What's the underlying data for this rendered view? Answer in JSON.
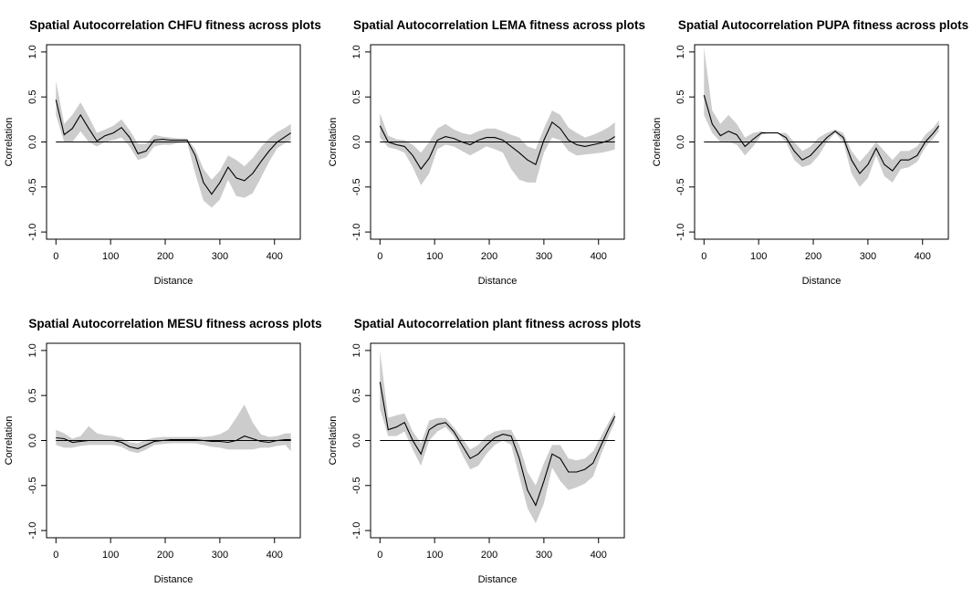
{
  "figure": {
    "background": "#ffffff",
    "band_color": "#cccccc",
    "line_color": "#000000"
  },
  "chart_data": [
    {
      "type": "line",
      "title": "Spatial Autocorrelation CHFU fitness across plots",
      "xlabel": "Distance",
      "ylabel": "Correlation",
      "xlim": [
        0,
        430
      ],
      "ylim": [
        -1,
        1
      ],
      "xticks": [
        0,
        100,
        200,
        300,
        400
      ],
      "yticks": [
        -1,
        -0.5,
        0,
        0.5,
        1
      ],
      "xtick_labels": [
        "0",
        "100",
        "200",
        "300",
        "400"
      ],
      "ytick_labels": [
        "-1.0",
        "-0.5",
        "0.0",
        "0.5",
        "1.0"
      ],
      "reference_line": 0,
      "x": [
        0,
        15,
        30,
        45,
        60,
        75,
        90,
        105,
        120,
        135,
        150,
        165,
        180,
        195,
        210,
        225,
        240,
        255,
        270,
        285,
        300,
        315,
        330,
        345,
        360,
        375,
        390,
        405,
        420,
        430
      ],
      "y": [
        0.47,
        0.08,
        0.15,
        0.3,
        0.15,
        0.01,
        0.07,
        0.1,
        0.16,
        0.05,
        -0.13,
        -0.1,
        0.02,
        0.03,
        0.02,
        0.02,
        0.02,
        -0.15,
        -0.45,
        -0.58,
        -0.45,
        -0.28,
        -0.4,
        -0.43,
        -0.35,
        -0.22,
        -0.1,
        0.0,
        0.06,
        0.1
      ],
      "lower": [
        0.3,
        0.0,
        0.0,
        0.12,
        0.0,
        -0.05,
        0.0,
        0.02,
        0.05,
        -0.05,
        -0.2,
        -0.17,
        -0.05,
        -0.03,
        -0.03,
        -0.01,
        0.0,
        -0.35,
        -0.65,
        -0.73,
        -0.64,
        -0.42,
        -0.6,
        -0.62,
        -0.57,
        -0.4,
        -0.22,
        -0.07,
        -0.01,
        0.02
      ],
      "upper": [
        0.68,
        0.2,
        0.3,
        0.44,
        0.28,
        0.1,
        0.14,
        0.18,
        0.25,
        0.13,
        -0.02,
        -0.02,
        0.08,
        0.06,
        0.05,
        0.04,
        0.04,
        -0.08,
        -0.3,
        -0.42,
        -0.32,
        -0.15,
        -0.2,
        -0.27,
        -0.18,
        -0.06,
        0.04,
        0.11,
        0.16,
        0.2
      ]
    },
    {
      "type": "line",
      "title": "Spatial Autocorrelation LEMA fitness across plots",
      "xlabel": "Distance",
      "ylabel": "Correlation",
      "xlim": [
        0,
        430
      ],
      "ylim": [
        -1,
        1
      ],
      "xticks": [
        0,
        100,
        200,
        300,
        400
      ],
      "yticks": [
        -1,
        -0.5,
        0,
        0.5,
        1
      ],
      "xtick_labels": [
        "0",
        "100",
        "200",
        "300",
        "400"
      ],
      "ytick_labels": [
        "-1.0",
        "-0.5",
        "0.0",
        "0.5",
        "1.0"
      ],
      "reference_line": 0,
      "x": [
        0,
        15,
        30,
        45,
        60,
        75,
        90,
        105,
        120,
        135,
        150,
        165,
        180,
        195,
        210,
        225,
        240,
        255,
        270,
        285,
        300,
        315,
        330,
        345,
        360,
        375,
        390,
        405,
        420,
        430
      ],
      "y": [
        0.18,
        0.0,
        -0.03,
        -0.05,
        -0.15,
        -0.3,
        -0.18,
        0.02,
        0.06,
        0.04,
        0.0,
        -0.03,
        0.02,
        0.05,
        0.05,
        0.02,
        -0.05,
        -0.12,
        -0.2,
        -0.25,
        0.02,
        0.22,
        0.15,
        0.02,
        -0.03,
        -0.05,
        -0.03,
        -0.01,
        0.02,
        0.06
      ],
      "lower": [
        0.05,
        -0.06,
        -0.08,
        -0.12,
        -0.28,
        -0.48,
        -0.35,
        -0.08,
        -0.03,
        -0.05,
        -0.1,
        -0.15,
        -0.1,
        -0.05,
        -0.08,
        -0.12,
        -0.3,
        -0.42,
        -0.45,
        -0.45,
        -0.12,
        0.05,
        0.02,
        -0.1,
        -0.15,
        -0.14,
        -0.13,
        -0.12,
        -0.1,
        -0.08
      ],
      "upper": [
        0.32,
        0.07,
        0.03,
        0.02,
        -0.03,
        -0.12,
        0.0,
        0.15,
        0.2,
        0.14,
        0.1,
        0.08,
        0.12,
        0.15,
        0.15,
        0.12,
        0.08,
        0.05,
        -0.05,
        -0.08,
        0.15,
        0.35,
        0.3,
        0.16,
        0.1,
        0.05,
        0.08,
        0.12,
        0.17,
        0.22
      ]
    },
    {
      "type": "line",
      "title": "Spatial Autocorrelation PUPA fitness across plots",
      "xlabel": "Distance",
      "ylabel": "Correlation",
      "xlim": [
        0,
        430
      ],
      "ylim": [
        -1,
        1
      ],
      "xticks": [
        0,
        100,
        200,
        300,
        400
      ],
      "yticks": [
        -1,
        -0.5,
        0,
        0.5,
        1
      ],
      "xtick_labels": [
        "0",
        "100",
        "200",
        "300",
        "400"
      ],
      "ytick_labels": [
        "-1.0",
        "-0.5",
        "0.0",
        "0.5",
        "1.0"
      ],
      "reference_line": 0,
      "x": [
        0,
        15,
        30,
        45,
        60,
        75,
        90,
        105,
        120,
        135,
        150,
        165,
        180,
        195,
        210,
        225,
        240,
        255,
        270,
        285,
        300,
        315,
        330,
        345,
        360,
        375,
        390,
        405,
        420,
        430
      ],
      "y": [
        0.52,
        0.2,
        0.07,
        0.12,
        0.08,
        -0.05,
        0.03,
        0.1,
        0.1,
        0.1,
        0.05,
        -0.1,
        -0.2,
        -0.15,
        -0.05,
        0.05,
        0.12,
        0.05,
        -0.2,
        -0.35,
        -0.25,
        -0.07,
        -0.25,
        -0.32,
        -0.2,
        -0.2,
        -0.15,
        0.0,
        0.1,
        0.18
      ],
      "lower": [
        0.3,
        0.1,
        0.0,
        0.0,
        -0.03,
        -0.15,
        -0.05,
        0.08,
        0.1,
        0.1,
        0.0,
        -0.2,
        -0.28,
        -0.25,
        -0.15,
        0.0,
        0.1,
        0.0,
        -0.35,
        -0.5,
        -0.4,
        -0.15,
        -0.38,
        -0.45,
        -0.3,
        -0.28,
        -0.22,
        -0.06,
        0.04,
        0.12
      ],
      "upper": [
        1.05,
        0.35,
        0.2,
        0.3,
        0.2,
        0.05,
        0.1,
        0.12,
        0.1,
        0.1,
        0.1,
        0.0,
        -0.1,
        -0.05,
        0.05,
        0.1,
        0.14,
        0.1,
        -0.1,
        -0.22,
        -0.12,
        0.0,
        -0.1,
        -0.2,
        -0.1,
        -0.1,
        -0.05,
        0.08,
        0.16,
        0.24
      ]
    },
    {
      "type": "line",
      "title": "Spatial Autocorrelation MESU fitness across plots",
      "xlabel": "Distance",
      "ylabel": "Correlation",
      "xlim": [
        0,
        430
      ],
      "ylim": [
        -1,
        1
      ],
      "xticks": [
        0,
        100,
        200,
        300,
        400
      ],
      "yticks": [
        -1,
        -0.5,
        0,
        0.5,
        1
      ],
      "xtick_labels": [
        "0",
        "100",
        "200",
        "300",
        "400"
      ],
      "ytick_labels": [
        "-1.0",
        "-0.5",
        "0.0",
        "0.5",
        "1.0"
      ],
      "reference_line": 0,
      "x": [
        0,
        15,
        30,
        45,
        60,
        75,
        90,
        105,
        120,
        135,
        150,
        165,
        180,
        195,
        210,
        225,
        240,
        255,
        270,
        285,
        300,
        315,
        330,
        345,
        360,
        375,
        390,
        405,
        420,
        430
      ],
      "y": [
        0.03,
        0.02,
        -0.02,
        -0.01,
        0.0,
        0.0,
        0.0,
        0.0,
        -0.02,
        -0.07,
        -0.09,
        -0.05,
        -0.01,
        0.0,
        0.01,
        0.01,
        0.01,
        0.01,
        0.0,
        -0.01,
        -0.01,
        -0.02,
        0.0,
        0.05,
        0.02,
        -0.01,
        -0.02,
        0.0,
        0.01,
        0.01
      ],
      "lower": [
        -0.05,
        -0.08,
        -0.08,
        -0.06,
        -0.05,
        -0.05,
        -0.05,
        -0.05,
        -0.07,
        -0.12,
        -0.14,
        -0.1,
        -0.05,
        -0.04,
        -0.03,
        -0.03,
        -0.03,
        -0.03,
        -0.05,
        -0.07,
        -0.08,
        -0.1,
        -0.1,
        -0.1,
        -0.1,
        -0.08,
        -0.08,
        -0.06,
        -0.05,
        -0.12
      ],
      "upper": [
        0.12,
        0.08,
        0.02,
        0.05,
        0.16,
        0.08,
        0.06,
        0.05,
        0.03,
        -0.02,
        -0.03,
        0.01,
        0.03,
        0.04,
        0.04,
        0.04,
        0.04,
        0.04,
        0.04,
        0.05,
        0.07,
        0.12,
        0.25,
        0.4,
        0.2,
        0.07,
        0.04,
        0.05,
        0.08,
        0.08
      ]
    },
    {
      "type": "line",
      "title": "Spatial Autocorrelation plant fitness across plots",
      "xlabel": "Distance",
      "ylabel": "Correlation",
      "xlim": [
        0,
        430
      ],
      "ylim": [
        -1,
        1
      ],
      "xticks": [
        0,
        100,
        200,
        300,
        400
      ],
      "yticks": [
        -1,
        -0.5,
        0,
        0.5,
        1
      ],
      "xtick_labels": [
        "0",
        "100",
        "200",
        "300",
        "400"
      ],
      "ytick_labels": [
        "-1.0",
        "-0.5",
        "0.0",
        "0.5",
        "1.0"
      ],
      "reference_line": 0,
      "x": [
        0,
        15,
        30,
        45,
        60,
        75,
        90,
        105,
        120,
        135,
        150,
        165,
        180,
        195,
        210,
        225,
        240,
        255,
        270,
        285,
        300,
        315,
        330,
        345,
        360,
        375,
        390,
        405,
        420,
        430
      ],
      "y": [
        0.65,
        0.12,
        0.15,
        0.2,
        0.0,
        -0.15,
        0.12,
        0.18,
        0.2,
        0.1,
        -0.05,
        -0.2,
        -0.15,
        -0.05,
        0.03,
        0.07,
        0.05,
        -0.2,
        -0.55,
        -0.72,
        -0.45,
        -0.15,
        -0.2,
        -0.35,
        -0.35,
        -0.32,
        -0.25,
        -0.05,
        0.15,
        0.27
      ],
      "lower": [
        0.35,
        0.05,
        0.05,
        0.1,
        -0.1,
        -0.28,
        0.0,
        0.1,
        0.15,
        0.05,
        -0.15,
        -0.32,
        -0.28,
        -0.15,
        -0.05,
        0.0,
        -0.05,
        -0.4,
        -0.75,
        -0.92,
        -0.7,
        -0.3,
        -0.45,
        -0.55,
        -0.52,
        -0.48,
        -0.4,
        -0.15,
        0.07,
        0.2
      ],
      "upper": [
        1.0,
        0.25,
        0.28,
        0.3,
        0.1,
        -0.03,
        0.22,
        0.25,
        0.25,
        0.15,
        0.03,
        -0.1,
        -0.05,
        0.05,
        0.1,
        0.12,
        0.12,
        -0.05,
        -0.35,
        -0.5,
        -0.25,
        -0.05,
        -0.05,
        -0.2,
        -0.22,
        -0.2,
        -0.12,
        0.05,
        0.22,
        0.32
      ]
    }
  ]
}
